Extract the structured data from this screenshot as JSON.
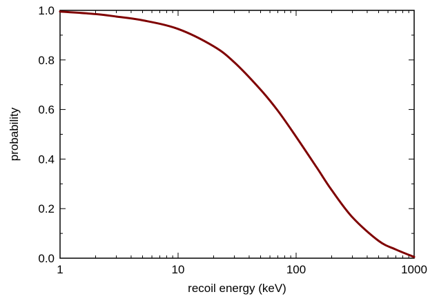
{
  "chart_data": {
    "type": "line",
    "title": "",
    "xlabel": "recoil energy (keV)",
    "ylabel": "probability",
    "x_scale": "log",
    "xlim": [
      1,
      1000
    ],
    "ylim": [
      0,
      1
    ],
    "grid": false,
    "x_ticks": [
      {
        "value": 1,
        "label": "1"
      },
      {
        "value": 10,
        "label": "10"
      },
      {
        "value": 100,
        "label": "100"
      },
      {
        "value": 1000,
        "label": "1000"
      }
    ],
    "y_ticks": [
      {
        "value": 0.0,
        "label": "0.0"
      },
      {
        "value": 0.2,
        "label": "0.2"
      },
      {
        "value": 0.4,
        "label": "0.4"
      },
      {
        "value": 0.6,
        "label": "0.6"
      },
      {
        "value": 0.8,
        "label": "0.8"
      },
      {
        "value": 1.0,
        "label": "1.0"
      }
    ],
    "series": [
      {
        "color": "#7f0000",
        "x": [
          1,
          2,
          3,
          5,
          10,
          20,
          30,
          50,
          70,
          100,
          150,
          200,
          300,
          500,
          700,
          1000
        ],
        "y": [
          0.995,
          0.985,
          0.975,
          0.96,
          0.925,
          0.855,
          0.79,
          0.68,
          0.595,
          0.49,
          0.365,
          0.275,
          0.165,
          0.07,
          0.035,
          0.005
        ]
      }
    ]
  }
}
